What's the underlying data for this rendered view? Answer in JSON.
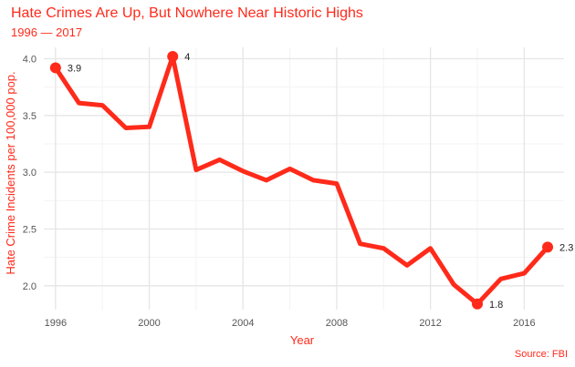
{
  "chart_data": {
    "type": "line",
    "title": "Hate Crimes Are Up, But Nowhere Near Historic Highs",
    "subtitle": "1996 — 2017",
    "xlabel": "Year",
    "ylabel": "Hate Crime Incidents per 100,000 pop.",
    "source": "Source: FBI",
    "xlim": [
      1995.5,
      2017.7
    ],
    "ylim": [
      1.79,
      4.1
    ],
    "xticks": [
      1996,
      2000,
      2004,
      2008,
      2012,
      2016
    ],
    "yticks": [
      "2.0",
      "2.5",
      "3.0",
      "3.5",
      "4.0"
    ],
    "grid": true,
    "line_color": "#ff2a1a",
    "series": [
      {
        "x": [
          1996,
          1997,
          1998,
          1999,
          2000,
          2001,
          2002,
          2003,
          2004,
          2005,
          2006,
          2007,
          2008,
          2009,
          2010,
          2011,
          2012,
          2013,
          2014,
          2015,
          2016,
          2017
        ],
        "values": [
          3.92,
          3.61,
          3.59,
          3.39,
          3.4,
          4.02,
          3.02,
          3.11,
          3.01,
          2.93,
          3.03,
          2.93,
          2.9,
          2.37,
          2.33,
          2.18,
          2.33,
          2.01,
          1.84,
          2.06,
          2.11,
          2.34
        ]
      }
    ],
    "highlights": [
      {
        "x": 1996,
        "y": 3.92,
        "label": "3.9"
      },
      {
        "x": 2001,
        "y": 4.02,
        "label": "4"
      },
      {
        "x": 2014,
        "y": 1.84,
        "label": "1.8"
      },
      {
        "x": 2017,
        "y": 2.34,
        "label": "2.3"
      }
    ]
  }
}
